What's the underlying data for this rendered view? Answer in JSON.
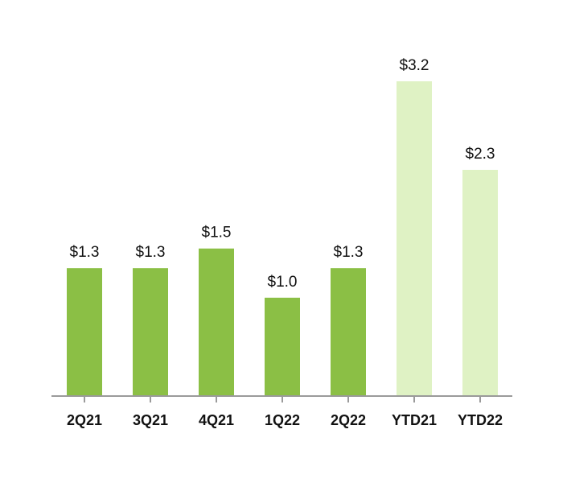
{
  "chart_data": {
    "type": "bar",
    "categories": [
      "2Q21",
      "3Q21",
      "4Q21",
      "1Q22",
      "2Q22",
      "YTD21",
      "YTD22"
    ],
    "values": [
      1.3,
      1.3,
      1.5,
      1.0,
      1.3,
      3.2,
      2.3
    ],
    "labels": [
      "$1.3",
      "$1.3",
      "$1.5",
      "$1.0",
      "$1.3",
      "$3.2",
      "$2.3"
    ],
    "colors": [
      "#8bbf45",
      "#8bbf45",
      "#8bbf45",
      "#8bbf45",
      "#8bbf45",
      "#dff2c4",
      "#dff2c4"
    ],
    "axis_color": "#9a9a9a",
    "ylim": [
      0,
      3.2
    ],
    "grid": false
  }
}
